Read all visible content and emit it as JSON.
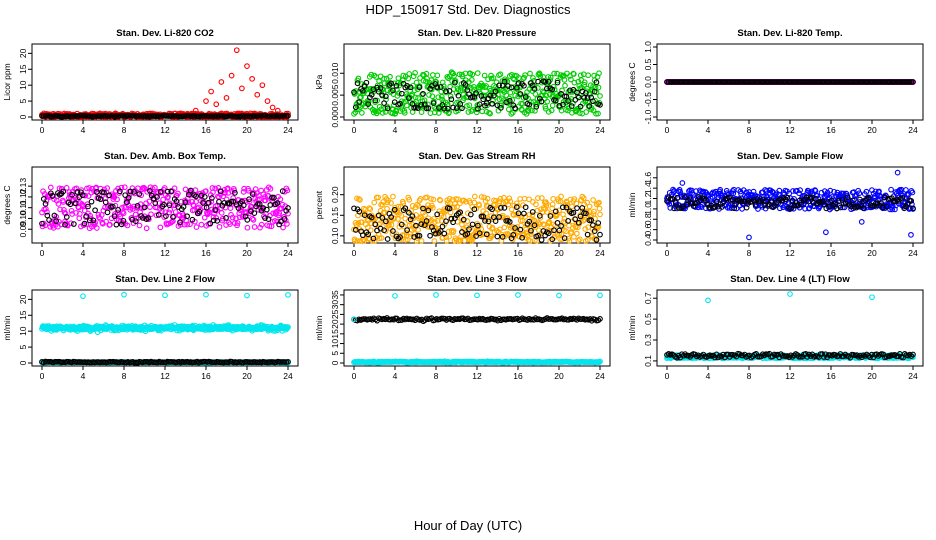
{
  "title": "HDP_150917  Std. Dev. Diagnostics",
  "x_axis_title": "Hour of Day (UTC)",
  "chart_data": [
    {
      "type": "scatter",
      "title": "Stan. Dev. Li-820 CO2",
      "ylabel": "Licor ppm",
      "xlim": [
        0,
        24
      ],
      "ylim": [
        0,
        22
      ],
      "xticks": [
        "0",
        "4",
        "8",
        "12",
        "16",
        "20",
        "24"
      ],
      "yticks": [
        0,
        5,
        10,
        15,
        20
      ],
      "colors": {
        "primary": "#ff0000",
        "secondary": "#000000"
      },
      "series": [
        {
          "name": "red",
          "pattern": "spiky",
          "base": 0.5,
          "noise": 0.4,
          "spikes": [
            [
              15,
              2
            ],
            [
              16,
              5
            ],
            [
              16.5,
              8
            ],
            [
              17,
              4
            ],
            [
              17.5,
              11
            ],
            [
              18,
              6
            ],
            [
              18.5,
              13
            ],
            [
              19,
              21
            ],
            [
              19.5,
              9
            ],
            [
              20,
              16
            ],
            [
              20.5,
              12
            ],
            [
              21,
              7
            ],
            [
              21.5,
              10
            ],
            [
              22,
              5
            ],
            [
              22.5,
              3
            ],
            [
              23,
              2
            ]
          ],
          "n": 400
        },
        {
          "name": "black",
          "pattern": "flat",
          "base": 0.3,
          "noise": 0.1,
          "n": 150
        }
      ]
    },
    {
      "type": "scatter",
      "title": "Stan. Dev. Li-820 Pressure",
      "ylabel": "kPa",
      "xlim": [
        0,
        24
      ],
      "ylim": [
        0,
        0.016
      ],
      "xticks": [
        "0",
        "4",
        "8",
        "12",
        "16",
        "20",
        "24"
      ],
      "yticks": [
        "0.000",
        "0.005",
        "0.010"
      ],
      "ytickvals": [
        0,
        0.005,
        0.01
      ],
      "colors": {
        "primary": "#00cc00",
        "secondary": "#000000"
      },
      "series": [
        {
          "name": "green",
          "pattern": "noise",
          "base": 0.0055,
          "noise": 0.003,
          "n": 500
        },
        {
          "name": "black",
          "pattern": "noise",
          "base": 0.005,
          "noise": 0.002,
          "n": 140
        }
      ]
    },
    {
      "type": "scatter",
      "title": "Stan. Dev. Li-820 Temp.",
      "ylabel": "degrees C",
      "xlim": [
        0,
        24
      ],
      "ylim": [
        -1,
        1
      ],
      "xticks": [
        "0",
        "4",
        "8",
        "12",
        "16",
        "20",
        "24"
      ],
      "yticks": [
        "-1.0",
        "-0.5",
        "0.0",
        "0.5",
        "1.0"
      ],
      "ytickvals": [
        -1,
        -0.5,
        0,
        0.5,
        1
      ],
      "colors": {
        "primary": "#ff00ff",
        "secondary": "#000000"
      },
      "series": [
        {
          "name": "magenta",
          "pattern": "flat",
          "base": 0,
          "noise": 0,
          "n": 300
        },
        {
          "name": "black",
          "pattern": "flat",
          "base": 0,
          "noise": 0,
          "n": 150
        }
      ]
    },
    {
      "type": "scatter",
      "title": "Stan. Dev. Amb. Box Temp.",
      "ylabel": "degrees C",
      "xlim": [
        0,
        24
      ],
      "ylim": [
        0.08,
        0.145
      ],
      "xticks": [
        "0",
        "4",
        "8",
        "12",
        "16",
        "20",
        "24"
      ],
      "yticks": [
        "0.09",
        "0.10",
        "0.11",
        "0.12",
        "0.13"
      ],
      "ytickvals": [
        0.09,
        0.1,
        0.11,
        0.12,
        0.13
      ],
      "colors": {
        "primary": "#ff00ff",
        "secondary": "#000000"
      },
      "series": [
        {
          "name": "magenta",
          "pattern": "noise",
          "base": 0.11,
          "noise": 0.012,
          "n": 450
        },
        {
          "name": "black",
          "pattern": "noise",
          "base": 0.11,
          "noise": 0.01,
          "n": 140
        }
      ]
    },
    {
      "type": "scatter",
      "title": "Stan. Dev. Gas Stream RH",
      "ylabel": "percent",
      "xlim": [
        0,
        24
      ],
      "ylim": [
        0.09,
        0.26
      ],
      "xticks": [
        "0",
        "4",
        "8",
        "12",
        "16",
        "20",
        "24"
      ],
      "yticks": [
        "0.10",
        "0.15",
        "0.20"
      ],
      "ytickvals": [
        0.1,
        0.15,
        0.2
      ],
      "colors": {
        "primary": "#ffaa00",
        "secondary": "#000000"
      },
      "series": [
        {
          "name": "orange",
          "pattern": "noise",
          "base": 0.14,
          "noise": 0.035,
          "n": 500
        },
        {
          "name": "black",
          "pattern": "noise",
          "base": 0.13,
          "noise": 0.025,
          "n": 140
        }
      ]
    },
    {
      "type": "scatter",
      "title": "Stan. Dev. Sample Flow",
      "ylabel": "ml/min",
      "xlim": [
        0,
        24
      ],
      "ylim": [
        0.4,
        1.75
      ],
      "xticks": [
        "0",
        "4",
        "8",
        "12",
        "16",
        "20",
        "24"
      ],
      "yticks": [
        "0.4",
        "0.6",
        "0.8",
        "1.0",
        "1.2",
        "1.4",
        "1.6"
      ],
      "ytickvals": [
        0.4,
        0.6,
        0.8,
        1.0,
        1.2,
        1.4,
        1.6
      ],
      "colors": {
        "primary": "#0000ff",
        "secondary": "#000000"
      },
      "series": [
        {
          "name": "blue",
          "pattern": "noise",
          "base": 1.18,
          "noise": 0.12,
          "n": 450,
          "spikes": [
            [
              8,
              0.45
            ],
            [
              15.5,
              0.55
            ],
            [
              19,
              0.75
            ],
            [
              23.8,
              0.5
            ],
            [
              22.5,
              1.7
            ],
            [
              1.5,
              1.5
            ]
          ]
        },
        {
          "name": "black",
          "pattern": "noise",
          "base": 1.12,
          "noise": 0.07,
          "n": 140
        }
      ]
    },
    {
      "type": "scatter",
      "title": "Stan. Dev. Line 2 Flow",
      "ylabel": "ml/min",
      "xlim": [
        0,
        24
      ],
      "ylim": [
        0,
        22
      ],
      "xticks": [
        "0",
        "4",
        "8",
        "12",
        "16",
        "20",
        "24"
      ],
      "yticks": [
        0,
        5,
        10,
        15,
        20
      ],
      "colors": {
        "primary": "#00e5ee",
        "secondary": "#000000"
      },
      "series": [
        {
          "name": "cyan-band",
          "pattern": "flat",
          "base": 11,
          "noise": 0.35,
          "n": 550
        },
        {
          "name": "cyan-low",
          "pattern": "flat",
          "base": 0.2,
          "noise": 0.05,
          "n": 200
        },
        {
          "name": "black",
          "pattern": "flat",
          "base": 0.3,
          "noise": 0.08,
          "n": 150
        },
        {
          "name": "cyan-peaks",
          "pattern": "points",
          "points": [
            [
              4,
              21
            ],
            [
              8,
              21.5
            ],
            [
              12,
              21.3
            ],
            [
              16,
              21.5
            ],
            [
              20,
              21.2
            ],
            [
              24,
              21.4
            ]
          ]
        }
      ]
    },
    {
      "type": "scatter",
      "title": "Stan. Dev. Line 3 Flow",
      "ylabel": "ml/min",
      "xlim": [
        0,
        24
      ],
      "ylim": [
        0,
        36
      ],
      "xticks": [
        "0",
        "4",
        "8",
        "12",
        "16",
        "20",
        "24"
      ],
      "yticks": [
        0,
        5,
        10,
        15,
        20,
        25,
        30,
        35
      ],
      "colors": {
        "primary": "#00e5ee",
        "secondary": "#000000"
      },
      "series": [
        {
          "name": "cyan-low",
          "pattern": "flat",
          "base": 0.5,
          "noise": 0.15,
          "n": 300
        },
        {
          "name": "black",
          "pattern": "flat",
          "base": 22.5,
          "noise": 0.3,
          "n": 150
        },
        {
          "name": "cyan-start",
          "pattern": "points",
          "points": [
            [
              0,
              22.5
            ]
          ]
        },
        {
          "name": "cyan-peaks",
          "pattern": "points",
          "points": [
            [
              4,
              34.5
            ],
            [
              8,
              35
            ],
            [
              12,
              34.8
            ],
            [
              16,
              35
            ],
            [
              20,
              34.7
            ],
            [
              24,
              34.8
            ]
          ]
        }
      ]
    },
    {
      "type": "scatter",
      "title": "Stan. Dev. Line 4 (LT) Flow",
      "ylabel": "ml/min",
      "xlim": [
        0,
        24
      ],
      "ylim": [
        0.08,
        0.75
      ],
      "xticks": [
        "0",
        "4",
        "8",
        "12",
        "16",
        "20",
        "24"
      ],
      "yticks": [
        "0.1",
        "0.3",
        "0.5",
        "0.7"
      ],
      "ytickvals": [
        0.1,
        0.3,
        0.5,
        0.7
      ],
      "colors": {
        "primary": "#00e5ee",
        "secondary": "#000000"
      },
      "series": [
        {
          "name": "cyan",
          "pattern": "noise",
          "base": 0.14,
          "noise": 0.01,
          "n": 450
        },
        {
          "name": "black",
          "pattern": "noise",
          "base": 0.15,
          "noise": 0.012,
          "n": 150
        },
        {
          "name": "cyan-peaks",
          "pattern": "points",
          "points": [
            [
              4,
              0.68
            ],
            [
              12,
              0.74
            ],
            [
              20,
              0.71
            ]
          ]
        }
      ]
    }
  ]
}
